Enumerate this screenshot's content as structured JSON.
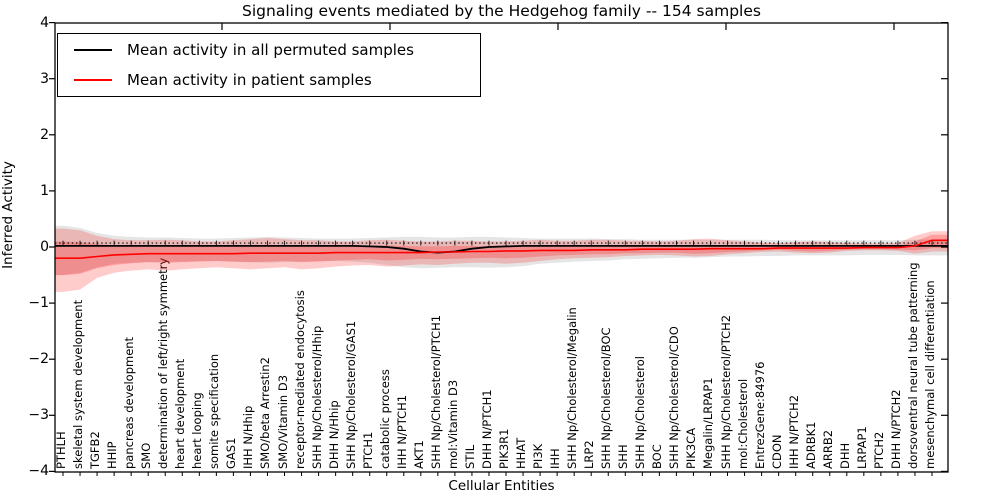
{
  "figure": {
    "title": "Signaling events mediated by the Hedgehog family -- 154 samples",
    "xlabel": "Cellular Entities",
    "ylabel": "Inferred Activity"
  },
  "legend": {
    "items": [
      {
        "label": "Mean activity in all permuted samples",
        "color": "#000000"
      },
      {
        "label": "Mean activity in patient samples",
        "color": "#ff0000"
      }
    ]
  },
  "chart_data": {
    "type": "line",
    "title": "Signaling events mediated by the Hedgehog family -- 154 samples",
    "xlabel": "Cellular Entities",
    "ylabel": "Inferred Activity",
    "ylim": [
      -4,
      4
    ],
    "yticks": [
      4,
      3,
      2,
      1,
      0,
      -1,
      -2,
      -3,
      -4
    ],
    "grid": false,
    "legend_position": "upper left",
    "reference_line": {
      "y": 0.07,
      "style": "dotted",
      "color": "#000000"
    },
    "categories": [
      "PTHLH",
      "skeletal system development",
      "TGFB2",
      "HHIP",
      "pancreas development",
      "SMO",
      "determination of left/right symmetry",
      "heart development",
      "heart looping",
      "somite specification",
      "GAS1",
      "IHH N/Hhip",
      "SMO/beta Arrestin2",
      "SMO/Vitamin D3",
      "receptor-mediated endocytosis",
      "SHH Np/Cholesterol/Hhip",
      "DHH N/Hhip",
      "SHH Np/Cholesterol/GAS1",
      "PTCH1",
      "catabolic process",
      "IHH N/PTCH1",
      "AKT1",
      "SHH Np/Cholesterol/PTCH1",
      "mol:Vitamin D3",
      "STIL",
      "DHH N/PTCH1",
      "PIK3R1",
      "HHAT",
      "PI3K",
      "IHH",
      "SHH Np/Cholesterol/Megalin",
      "LRP2",
      "SHH Np/Cholesterol/BOC",
      "SHH",
      "SHH Np/Cholesterol",
      "BOC",
      "SHH Np/Cholesterol/CDO",
      "PIK3CA",
      "Megalin/LRPAP1",
      "SHH Np/Cholesterol/PTCH2",
      "mol:Cholesterol",
      "EntrezGene:84976",
      "CDON",
      "IHH N/PTCH2",
      "ADRBK1",
      "ARRB2",
      "DHH",
      "LRPAP1",
      "PTCH2",
      "DHH N/PTCH2",
      "dorsoventral neural tube patterning",
      "mesenchymal cell differentiation"
    ],
    "series": [
      {
        "name": "Mean activity in all permuted samples",
        "color": "#000000",
        "values": [
          0.02,
          0.02,
          0.02,
          0.02,
          0.02,
          0.02,
          0.02,
          0.02,
          0.02,
          0.02,
          0.02,
          0.02,
          0.02,
          0.02,
          0.02,
          0.02,
          0.02,
          0.02,
          0.01,
          0.0,
          -0.03,
          -0.08,
          -0.1,
          -0.08,
          -0.03,
          0.0,
          0.01,
          0.02,
          0.02,
          0.02,
          0.02,
          0.02,
          0.02,
          0.02,
          0.02,
          0.02,
          0.02,
          0.02,
          0.02,
          0.02,
          0.02,
          0.02,
          0.02,
          0.02,
          0.02,
          0.02,
          0.02,
          0.02,
          0.02,
          0.02,
          0.02,
          0.02
        ]
      },
      {
        "name": "Mean activity in patient samples",
        "color": "#ff0000",
        "values": [
          -0.2,
          -0.2,
          -0.17,
          -0.14,
          -0.13,
          -0.12,
          -0.12,
          -0.12,
          -0.12,
          -0.12,
          -0.12,
          -0.11,
          -0.11,
          -0.11,
          -0.11,
          -0.11,
          -0.1,
          -0.1,
          -0.1,
          -0.1,
          -0.1,
          -0.1,
          -0.09,
          -0.09,
          -0.08,
          -0.08,
          -0.07,
          -0.07,
          -0.06,
          -0.06,
          -0.06,
          -0.05,
          -0.05,
          -0.05,
          -0.04,
          -0.04,
          -0.04,
          -0.04,
          -0.03,
          -0.03,
          -0.03,
          -0.03,
          -0.02,
          -0.02,
          -0.02,
          -0.02,
          -0.02,
          -0.01,
          -0.01,
          -0.01,
          0.02,
          0.12
        ]
      }
    ],
    "bands": [
      {
        "name": "permuted-samples-std",
        "color": "#888888",
        "opacity": 0.22,
        "upper": [
          0.38,
          0.34,
          0.25,
          0.2,
          0.18,
          0.17,
          0.17,
          0.16,
          0.15,
          0.15,
          0.16,
          0.17,
          0.18,
          0.17,
          0.16,
          0.15,
          0.15,
          0.15,
          0.16,
          0.17,
          0.18,
          0.18,
          0.17,
          0.17,
          0.18,
          0.18,
          0.17,
          0.16,
          0.15,
          0.15,
          0.15,
          0.15,
          0.14,
          0.14,
          0.13,
          0.13,
          0.13,
          0.13,
          0.13,
          0.13,
          0.13,
          0.13,
          0.12,
          0.12,
          0.12,
          0.12,
          0.12,
          0.12,
          0.12,
          0.12,
          0.13,
          0.13
        ],
        "lower": [
          -0.5,
          -0.46,
          -0.36,
          -0.3,
          -0.28,
          -0.27,
          -0.27,
          -0.26,
          -0.25,
          -0.25,
          -0.26,
          -0.27,
          -0.28,
          -0.27,
          -0.26,
          -0.25,
          -0.25,
          -0.26,
          -0.28,
          -0.32,
          -0.36,
          -0.38,
          -0.37,
          -0.36,
          -0.36,
          -0.37,
          -0.36,
          -0.34,
          -0.3,
          -0.28,
          -0.26,
          -0.25,
          -0.24,
          -0.22,
          -0.21,
          -0.2,
          -0.19,
          -0.19,
          -0.18,
          -0.17,
          -0.17,
          -0.16,
          -0.16,
          -0.15,
          -0.15,
          -0.15,
          -0.15,
          -0.14,
          -0.14,
          -0.14,
          -0.15,
          -0.15
        ]
      },
      {
        "name": "patient-samples-outer",
        "color": "#ff0000",
        "opacity": 0.2,
        "upper": [
          0.33,
          0.3,
          0.2,
          0.14,
          0.12,
          0.12,
          0.13,
          0.12,
          0.1,
          0.1,
          0.12,
          0.14,
          0.16,
          0.14,
          0.12,
          0.12,
          0.1,
          0.1,
          0.12,
          0.13,
          0.11,
          0.1,
          0.1,
          0.11,
          0.11,
          0.1,
          0.1,
          0.11,
          0.13,
          0.11,
          0.11,
          0.13,
          0.13,
          0.11,
          0.11,
          0.1,
          0.11,
          0.14,
          0.15,
          0.12,
          0.1,
          0.08,
          0.07,
          0.09,
          0.1,
          0.09,
          0.07,
          0.06,
          0.06,
          0.07,
          0.2,
          0.28
        ],
        "lower": [
          -0.8,
          -0.76,
          -0.55,
          -0.46,
          -0.42,
          -0.4,
          -0.42,
          -0.4,
          -0.38,
          -0.36,
          -0.38,
          -0.4,
          -0.38,
          -0.36,
          -0.4,
          -0.38,
          -0.35,
          -0.33,
          -0.32,
          -0.35,
          -0.33,
          -0.31,
          -0.32,
          -0.3,
          -0.28,
          -0.28,
          -0.3,
          -0.28,
          -0.25,
          -0.22,
          -0.2,
          -0.19,
          -0.18,
          -0.16,
          -0.15,
          -0.14,
          -0.15,
          -0.17,
          -0.16,
          -0.13,
          -0.11,
          -0.09,
          -0.08,
          -0.1,
          -0.11,
          -0.1,
          -0.07,
          -0.06,
          -0.06,
          -0.07,
          -0.12,
          -0.08
        ]
      },
      {
        "name": "patient-samples-inner",
        "color": "#ff0000",
        "opacity": 0.22,
        "upper": [
          0.1,
          0.09,
          0.05,
          0.03,
          0.02,
          0.02,
          0.03,
          0.02,
          0.01,
          0.01,
          0.02,
          0.03,
          0.04,
          0.03,
          0.02,
          0.02,
          0.01,
          0.01,
          0.02,
          0.03,
          0.02,
          0.01,
          0.01,
          0.02,
          0.02,
          0.01,
          0.01,
          0.02,
          0.03,
          0.02,
          0.02,
          0.03,
          0.03,
          0.02,
          0.02,
          0.02,
          0.02,
          0.04,
          0.04,
          0.02,
          0.02,
          0.01,
          0.01,
          0.02,
          0.03,
          0.02,
          0.01,
          0.01,
          0.01,
          0.01,
          0.1,
          0.22
        ],
        "lower": [
          -0.5,
          -0.48,
          -0.38,
          -0.32,
          -0.29,
          -0.27,
          -0.28,
          -0.27,
          -0.26,
          -0.25,
          -0.26,
          -0.27,
          -0.26,
          -0.25,
          -0.27,
          -0.26,
          -0.24,
          -0.23,
          -0.22,
          -0.24,
          -0.23,
          -0.21,
          -0.22,
          -0.21,
          -0.2,
          -0.19,
          -0.2,
          -0.19,
          -0.17,
          -0.15,
          -0.14,
          -0.13,
          -0.13,
          -0.11,
          -0.11,
          -0.1,
          -0.1,
          -0.12,
          -0.11,
          -0.09,
          -0.08,
          -0.06,
          -0.05,
          -0.07,
          -0.08,
          -0.07,
          -0.05,
          -0.04,
          -0.04,
          -0.05,
          -0.06,
          -0.02
        ]
      }
    ]
  }
}
